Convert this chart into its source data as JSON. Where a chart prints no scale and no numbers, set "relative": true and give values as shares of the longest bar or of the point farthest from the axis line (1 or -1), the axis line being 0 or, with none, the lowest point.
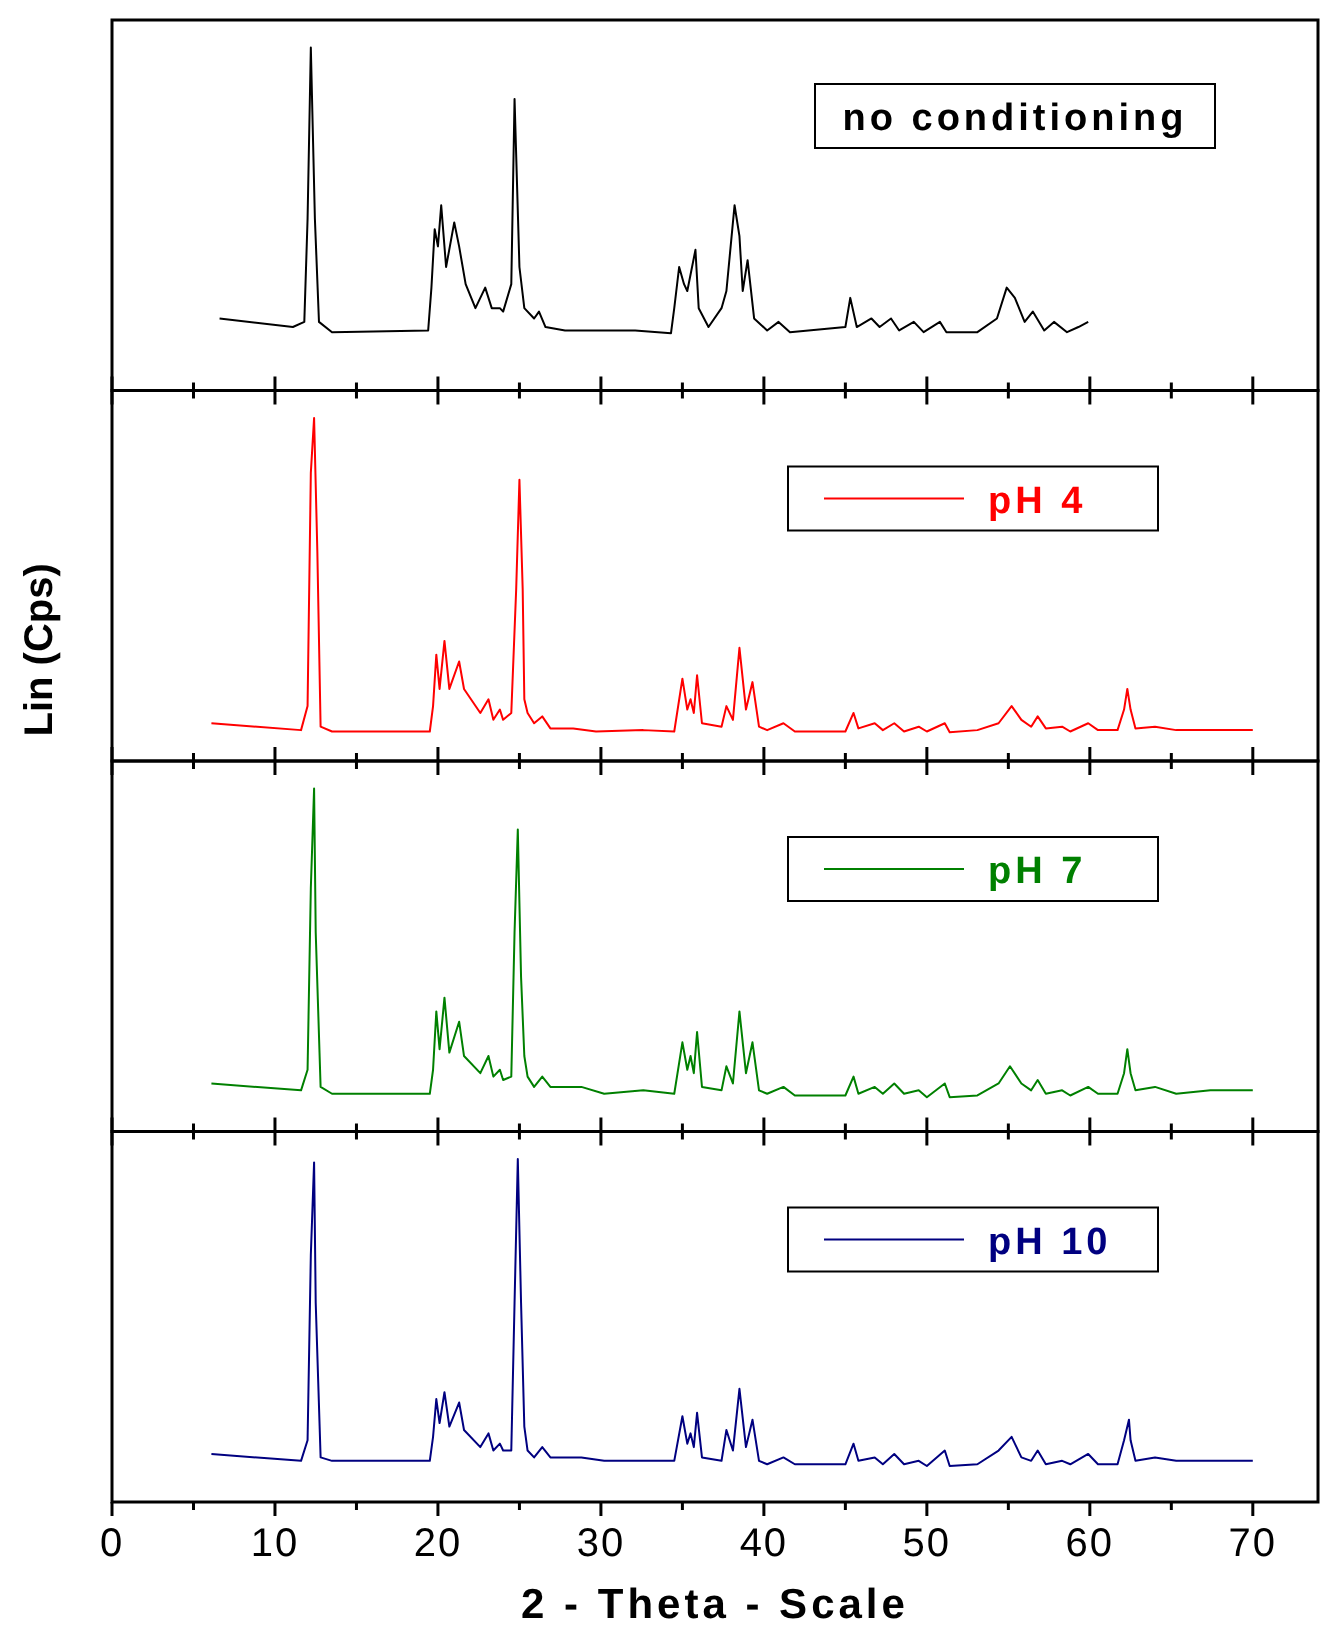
{
  "chart_data": [
    {
      "type": "line",
      "relative": true,
      "legend": "top",
      "tick_labels": false,
      "xlim": [
        0,
        74
      ],
      "xticks": [
        0,
        {
          "value": 5,
          "label": null
        },
        10,
        {
          "value": 15,
          "label": null
        },
        20,
        {
          "value": 25,
          "label": null
        },
        30,
        {
          "value": 35,
          "label": null
        },
        40,
        {
          "value": 45,
          "label": null
        },
        50,
        {
          "value": 55,
          "label": null
        },
        60,
        {
          "value": 65,
          "label": null
        },
        70
      ],
      "series": [
        {
          "name": "no conditioning",
          "color": "#000000",
          "x": [
            6.6,
            11.1,
            11.8,
            12.0,
            12.2,
            12.45,
            12.7,
            13.5,
            19.4,
            19.6,
            19.8,
            20.0,
            20.2,
            20.5,
            21.0,
            21.3,
            21.7,
            22.3,
            22.9,
            23.3,
            23.8,
            24.0,
            24.5,
            24.7,
            25.0,
            25.3,
            25.9,
            26.2,
            26.6,
            27.8,
            32.1,
            34.3,
            34.5,
            34.8,
            35.1,
            35.3,
            35.8,
            36.0,
            36.6,
            37.4,
            37.7,
            38.2,
            38.5,
            38.7,
            39.0,
            39.4,
            40.2,
            40.9,
            41.6,
            45.0,
            45.3,
            45.7,
            46.6,
            47.1,
            47.8,
            48.3,
            49.2,
            49.8,
            50.8,
            51.2,
            53.1,
            54.3,
            54.9,
            55.4,
            56.0,
            56.5,
            57.2,
            57.8,
            58.6,
            59.3,
            59.9
          ],
          "values": [
            0.21,
            0.185,
            0.2,
            0.5,
            1.0,
            0.5,
            0.2,
            0.17,
            0.175,
            0.3,
            0.47,
            0.42,
            0.54,
            0.36,
            0.49,
            0.42,
            0.31,
            0.24,
            0.3,
            0.24,
            0.24,
            0.23,
            0.31,
            0.85,
            0.36,
            0.24,
            0.21,
            0.23,
            0.185,
            0.175,
            0.175,
            0.167,
            0.24,
            0.36,
            0.31,
            0.29,
            0.41,
            0.24,
            0.185,
            0.24,
            0.29,
            0.54,
            0.45,
            0.29,
            0.38,
            0.21,
            0.175,
            0.2,
            0.17,
            0.185,
            0.27,
            0.185,
            0.21,
            0.185,
            0.21,
            0.175,
            0.2,
            0.17,
            0.2,
            0.17,
            0.17,
            0.21,
            0.3,
            0.27,
            0.2,
            0.23,
            0.175,
            0.2,
            0.17,
            0.185,
            0.2
          ]
        }
      ]
    },
    {
      "type": "line",
      "relative": true,
      "ylabel": "Lin (Cps)",
      "legend": "top right",
      "tick_labels": false,
      "xlim": [
        0,
        74
      ],
      "xticks": [
        0,
        {
          "value": 5,
          "label": null
        },
        10,
        {
          "value": 15,
          "label": null
        },
        20,
        {
          "value": 25,
          "label": null
        },
        30,
        {
          "value": 35,
          "label": null
        },
        40,
        {
          "value": 45,
          "label": null
        },
        50,
        {
          "value": 55,
          "label": null
        },
        60,
        {
          "value": 65,
          "label": null
        },
        70
      ],
      "series": [
        {
          "name": "pH 4",
          "color": "#ff0000",
          "x": [
            6.1,
            11.6,
            12.0,
            12.2,
            12.4,
            12.6,
            12.8,
            13.5,
            19.5,
            19.7,
            19.9,
            20.1,
            20.4,
            20.7,
            21.3,
            21.6,
            22.6,
            23.1,
            23.4,
            23.8,
            24.0,
            24.5,
            24.8,
            25.0,
            25.2,
            25.3,
            25.5,
            25.9,
            26.4,
            26.9,
            28.3,
            29.7,
            32.6,
            34.5,
            35.0,
            35.3,
            35.5,
            35.7,
            35.9,
            36.2,
            37.4,
            37.7,
            38.1,
            38.5,
            38.9,
            39.3,
            39.7,
            40.2,
            41.2,
            41.9,
            45.0,
            45.5,
            45.8,
            46.8,
            47.3,
            48.0,
            48.6,
            49.5,
            50.0,
            51.1,
            51.4,
            53.1,
            54.4,
            55.2,
            55.8,
            56.4,
            56.8,
            57.3,
            58.3,
            58.8,
            59.9,
            60.5,
            61.7,
            62.1,
            62.3,
            62.5,
            62.8,
            64.0,
            65.3,
            67.4,
            70.0
          ],
          "values": [
            0.11,
            0.09,
            0.16,
            0.84,
            1.0,
            0.61,
            0.1,
            0.086,
            0.086,
            0.16,
            0.31,
            0.21,
            0.35,
            0.21,
            0.29,
            0.21,
            0.14,
            0.18,
            0.12,
            0.15,
            0.12,
            0.14,
            0.5,
            0.82,
            0.5,
            0.18,
            0.14,
            0.11,
            0.13,
            0.095,
            0.095,
            0.086,
            0.09,
            0.086,
            0.24,
            0.15,
            0.18,
            0.14,
            0.25,
            0.11,
            0.1,
            0.16,
            0.12,
            0.33,
            0.15,
            0.23,
            0.1,
            0.09,
            0.11,
            0.086,
            0.086,
            0.14,
            0.095,
            0.11,
            0.09,
            0.11,
            0.086,
            0.1,
            0.086,
            0.11,
            0.084,
            0.09,
            0.11,
            0.16,
            0.12,
            0.1,
            0.13,
            0.095,
            0.1,
            0.086,
            0.11,
            0.09,
            0.09,
            0.15,
            0.21,
            0.15,
            0.095,
            0.1,
            0.09,
            0.09,
            0.09
          ]
        }
      ]
    },
    {
      "type": "line",
      "relative": true,
      "legend": "top right",
      "tick_labels": false,
      "xlim": [
        0,
        74
      ],
      "xticks": [
        0,
        {
          "value": 5,
          "label": null
        },
        10,
        {
          "value": 15,
          "label": null
        },
        20,
        {
          "value": 25,
          "label": null
        },
        30,
        {
          "value": 35,
          "label": null
        },
        40,
        {
          "value": 45,
          "label": null
        },
        50,
        {
          "value": 55,
          "label": null
        },
        60,
        {
          "value": 65,
          "label": null
        },
        70
      ],
      "series": [
        {
          "name": "pH 7",
          "color": "#008000",
          "x": [
            6.1,
            11.6,
            12.0,
            12.2,
            12.4,
            12.5,
            12.8,
            13.5,
            19.5,
            19.7,
            19.9,
            20.1,
            20.4,
            20.7,
            21.3,
            21.6,
            22.6,
            23.1,
            23.4,
            23.8,
            24.0,
            24.5,
            24.7,
            24.9,
            25.1,
            25.3,
            25.5,
            25.9,
            26.4,
            26.9,
            28.8,
            30.2,
            32.6,
            34.5,
            35.0,
            35.3,
            35.5,
            35.7,
            35.9,
            36.2,
            37.4,
            37.7,
            38.1,
            38.5,
            38.9,
            39.3,
            39.7,
            40.2,
            41.2,
            41.9,
            45.0,
            45.5,
            45.8,
            46.8,
            47.3,
            48.0,
            48.6,
            49.5,
            50.0,
            51.1,
            51.4,
            53.1,
            54.4,
            55.1,
            55.8,
            56.4,
            56.8,
            57.3,
            58.3,
            58.8,
            59.9,
            60.5,
            61.7,
            62.1,
            62.3,
            62.5,
            62.8,
            64.0,
            65.3,
            67.4,
            70.0
          ],
          "values": [
            0.14,
            0.12,
            0.18,
            0.71,
            1.0,
            0.58,
            0.13,
            0.11,
            0.11,
            0.18,
            0.35,
            0.24,
            0.39,
            0.23,
            0.32,
            0.22,
            0.17,
            0.22,
            0.16,
            0.18,
            0.15,
            0.16,
            0.58,
            0.88,
            0.45,
            0.22,
            0.16,
            0.13,
            0.16,
            0.13,
            0.13,
            0.11,
            0.12,
            0.11,
            0.26,
            0.18,
            0.22,
            0.17,
            0.29,
            0.13,
            0.12,
            0.19,
            0.14,
            0.35,
            0.17,
            0.26,
            0.12,
            0.11,
            0.13,
            0.105,
            0.105,
            0.16,
            0.11,
            0.13,
            0.11,
            0.14,
            0.11,
            0.12,
            0.1,
            0.14,
            0.1,
            0.105,
            0.14,
            0.19,
            0.14,
            0.12,
            0.15,
            0.11,
            0.12,
            0.105,
            0.13,
            0.11,
            0.11,
            0.17,
            0.24,
            0.17,
            0.12,
            0.13,
            0.11,
            0.12,
            0.12
          ]
        }
      ]
    },
    {
      "type": "line",
      "relative": true,
      "legend": "top right",
      "xlabel": "2 - Theta - Scale",
      "xlim": [
        0,
        74
      ],
      "xticks": [
        0,
        {
          "value": 5,
          "label": null
        },
        10,
        {
          "value": 15,
          "label": null
        },
        20,
        {
          "value": 25,
          "label": null
        },
        30,
        {
          "value": 35,
          "label": null
        },
        40,
        {
          "value": 45,
          "label": null
        },
        50,
        {
          "value": 55,
          "label": null
        },
        60,
        {
          "value": 65,
          "label": null
        },
        70
      ],
      "series": [
        {
          "name": "pH 10",
          "color": "#000080",
          "x": [
            6.1,
            11.6,
            12.0,
            12.2,
            12.4,
            12.5,
            12.8,
            13.5,
            19.5,
            19.7,
            19.9,
            20.1,
            20.4,
            20.7,
            21.3,
            21.6,
            22.6,
            23.1,
            23.4,
            23.8,
            24.0,
            24.5,
            24.7,
            24.9,
            25.1,
            25.3,
            25.5,
            25.9,
            26.4,
            26.9,
            28.8,
            30.2,
            32.5,
            34.5,
            35.0,
            35.3,
            35.5,
            35.7,
            35.9,
            36.2,
            37.4,
            37.7,
            38.1,
            38.5,
            38.9,
            39.3,
            39.7,
            40.2,
            41.2,
            41.9,
            45.0,
            45.5,
            45.8,
            46.8,
            47.3,
            48.0,
            48.6,
            49.5,
            50.0,
            51.1,
            51.4,
            53.1,
            54.4,
            55.2,
            55.8,
            56.4,
            56.8,
            57.3,
            58.3,
            58.8,
            59.9,
            60.5,
            61.7,
            62.1,
            62.4,
            62.5,
            62.8,
            64.0,
            65.3,
            67.4,
            70.0
          ],
          "values": [
            0.14,
            0.12,
            0.18,
            0.72,
            0.99,
            0.58,
            0.13,
            0.12,
            0.12,
            0.19,
            0.3,
            0.23,
            0.32,
            0.22,
            0.29,
            0.21,
            0.16,
            0.2,
            0.15,
            0.17,
            0.15,
            0.15,
            0.58,
            1.0,
            0.58,
            0.22,
            0.15,
            0.13,
            0.16,
            0.13,
            0.13,
            0.12,
            0.12,
            0.12,
            0.25,
            0.17,
            0.2,
            0.16,
            0.26,
            0.13,
            0.12,
            0.21,
            0.15,
            0.33,
            0.16,
            0.24,
            0.12,
            0.11,
            0.13,
            0.11,
            0.11,
            0.17,
            0.12,
            0.13,
            0.11,
            0.14,
            0.11,
            0.12,
            0.105,
            0.15,
            0.105,
            0.11,
            0.15,
            0.19,
            0.13,
            0.12,
            0.15,
            0.11,
            0.12,
            0.11,
            0.14,
            0.11,
            0.11,
            0.18,
            0.24,
            0.18,
            0.12,
            0.13,
            0.12,
            0.12,
            0.12
          ]
        }
      ]
    }
  ]
}
